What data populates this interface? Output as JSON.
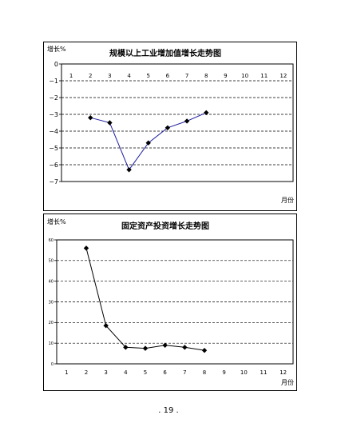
{
  "chart_data": [
    {
      "type": "line",
      "title": "规模以上工业增加值增长走势图",
      "ylabel": "增长%",
      "xlabel": "月份",
      "x": [
        1,
        2,
        3,
        4,
        5,
        6,
        7,
        8,
        9,
        10,
        11,
        12
      ],
      "x_tick_labels": [
        "1",
        "2",
        "3",
        "4",
        "5",
        "6",
        "7",
        "8",
        "9",
        "10",
        "11",
        "12"
      ],
      "y_tick_labels": [
        "0",
        "−1",
        "−2",
        "−3",
        "−4",
        "−5",
        "−6",
        "−7"
      ],
      "ylim": [
        -7,
        0
      ],
      "grid": "dashed horizontal",
      "series": [
        {
          "points": [
            [
              2,
              -3.2
            ],
            [
              3,
              -3.5
            ],
            [
              4,
              -6.3
            ],
            [
              5,
              -4.7
            ],
            [
              6,
              -3.8
            ],
            [
              7,
              -3.4
            ],
            [
              8,
              -2.9
            ]
          ]
        }
      ],
      "line_color": "#1f1fa0",
      "marker_color": "#000000"
    },
    {
      "type": "line",
      "title": "固定资产投资增长走势图",
      "ylabel": "增长%",
      "xlabel": "月份",
      "x": [
        1,
        2,
        3,
        4,
        5,
        6,
        7,
        8,
        9,
        10,
        11,
        12
      ],
      "x_tick_labels": [
        "1",
        "2",
        "3",
        "4",
        "5",
        "6",
        "7",
        "8",
        "9",
        "10",
        "11",
        "12"
      ],
      "y_tick_labels": [
        "0",
        "10",
        "20",
        "30",
        "40",
        "50",
        "60"
      ],
      "ylim": [
        0,
        60
      ],
      "grid": "dashed horizontal",
      "series": [
        {
          "points": [
            [
              2,
              56
            ],
            [
              3,
              18.5
            ],
            [
              4,
              8
            ],
            [
              5,
              7.5
            ],
            [
              6,
              9
            ],
            [
              7,
              8
            ],
            [
              8,
              6.5
            ]
          ]
        }
      ],
      "line_color": "#000000",
      "marker_color": "#000000"
    }
  ],
  "footer": {
    "page_number": ". 19 ."
  }
}
